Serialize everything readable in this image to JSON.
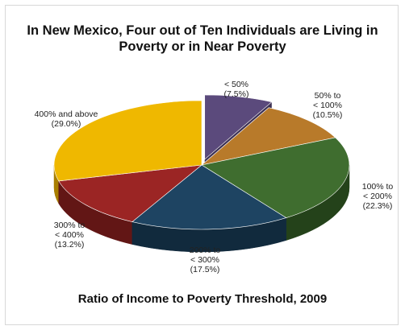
{
  "chart_data": {
    "type": "pie",
    "title_lines": [
      "In New Mexico, Four out of Ten Individuals are Living in",
      "Poverty or in Near Poverty"
    ],
    "subtitle": "Ratio of Income to Poverty Threshold, 2009",
    "slices": [
      {
        "label_lines": [
          "< 50%",
          "(7.5%)"
        ],
        "value": 7.5,
        "color": "#5b4a7c",
        "side": "#3d3154"
      },
      {
        "label_lines": [
          "50% to",
          "< 100%",
          "(10.5%)"
        ],
        "value": 10.5,
        "color": "#b87a2a",
        "side": "#7f521a"
      },
      {
        "label_lines": [
          "100% to",
          "< 200%",
          "(22.3%)"
        ],
        "value": 22.3,
        "color": "#3f6d2f",
        "side": "#24421a"
      },
      {
        "label_lines": [
          "200% to",
          "< 300%",
          "(17.5%)"
        ],
        "value": 17.5,
        "color": "#1e4462",
        "side": "#112a3d"
      },
      {
        "label_lines": [
          "300% to",
          "< 400%",
          "(13.2%)"
        ],
        "value": 13.2,
        "color": "#9b2524",
        "side": "#621615"
      },
      {
        "label_lines": [
          "400% and above",
          "(29.0%)"
        ],
        "value": 29.0,
        "color": "#efb800",
        "side": "#a97f00"
      }
    ],
    "exploded_slice_index": 0,
    "legend": "none"
  }
}
